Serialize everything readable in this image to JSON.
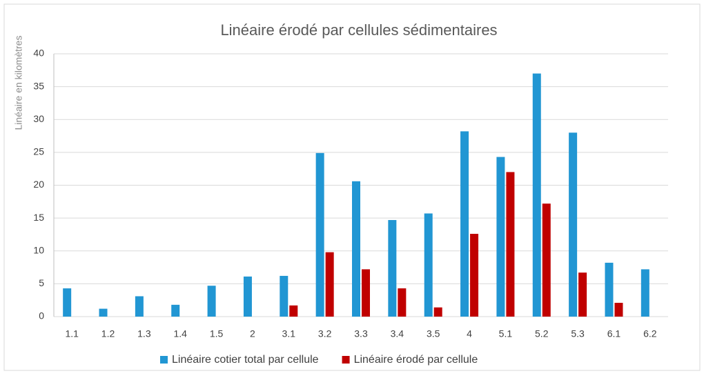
{
  "chart_data": {
    "type": "bar",
    "title": "Linéaire érodé par cellules sédimentaires",
    "y_label": "Linéaire  en kilomètres",
    "categories": [
      "1.1",
      "1.2",
      "1.3",
      "1.4",
      "1.5",
      "2",
      "3.1",
      "3.2",
      "3.3",
      "3.4",
      "3.5",
      "4",
      "5.1",
      "5.2",
      "5.3",
      "6.1",
      "6.2"
    ],
    "series": [
      {
        "name": "Linéaire cotier total par cellule",
        "color": "#2196d3",
        "values": [
          4.3,
          1.2,
          3.1,
          1.8,
          4.7,
          6.1,
          6.2,
          24.9,
          20.6,
          14.7,
          15.7,
          28.2,
          24.3,
          37.0,
          28.0,
          8.2,
          7.2
        ]
      },
      {
        "name": "Linéaire érodé par cellule",
        "color": "#c00000",
        "values": [
          null,
          null,
          null,
          null,
          null,
          null,
          1.7,
          9.8,
          7.2,
          4.3,
          1.4,
          12.6,
          22.0,
          17.2,
          6.7,
          2.1,
          null
        ]
      }
    ],
    "ylim": [
      0,
      40
    ],
    "yticks": [
      0,
      5,
      10,
      15,
      20,
      25,
      30,
      35,
      40
    ],
    "grid": true,
    "legend": "bottom"
  }
}
